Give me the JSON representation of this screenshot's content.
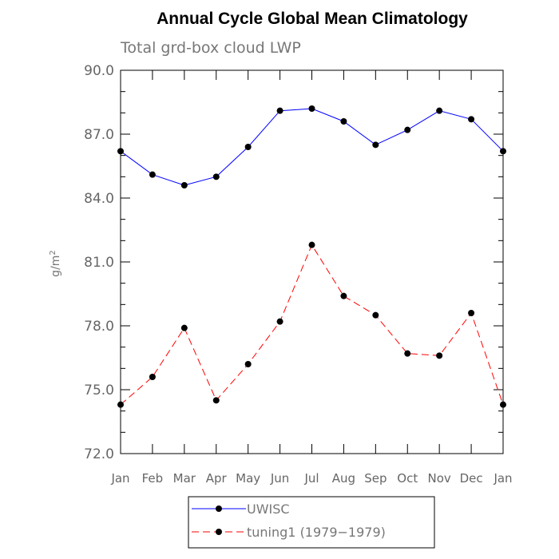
{
  "chart_data": {
    "type": "line",
    "title": "Annual Cycle Global Mean Climatology",
    "subtitle": "Total grd-box cloud LWP",
    "ylabel_base": "g/m",
    "ylabel_sup": "2",
    "ylim": [
      72.0,
      90.0
    ],
    "yticks": [
      "72.0",
      "75.0",
      "78.0",
      "81.0",
      "84.0",
      "87.0",
      "90.0"
    ],
    "categories": [
      "Jan",
      "Feb",
      "Mar",
      "Apr",
      "May",
      "Jun",
      "Jul",
      "Aug",
      "Sep",
      "Oct",
      "Nov",
      "Dec",
      "Jan"
    ],
    "legend_position": "bottom",
    "series": [
      {
        "name": "UWISC",
        "color": "#0000ff",
        "dash": "solid",
        "values": [
          86.2,
          85.1,
          84.6,
          85.0,
          86.4,
          88.1,
          88.2,
          87.6,
          86.5,
          87.2,
          88.1,
          87.7,
          86.2
        ]
      },
      {
        "name": "tuning1 (1979−1979)",
        "color": "#ff0000",
        "dash": "dashed",
        "values": [
          74.3,
          75.6,
          77.9,
          74.5,
          76.2,
          78.2,
          81.8,
          79.4,
          78.5,
          76.7,
          76.6,
          78.6,
          74.3
        ]
      }
    ]
  }
}
